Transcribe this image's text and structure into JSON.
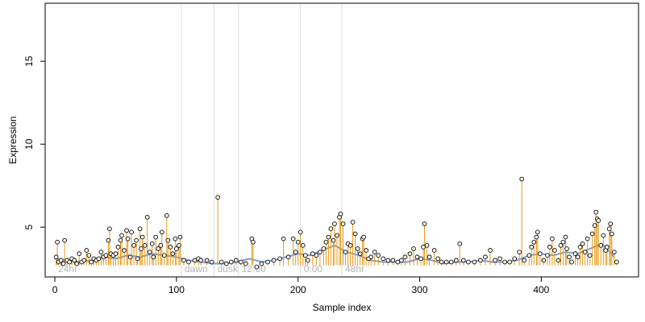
{
  "chart_data": {
    "type": "scatter",
    "xlabel": "Sample index",
    "ylabel": "Expression",
    "xlim": [
      -8,
      480
    ],
    "ylim": [
      2.0,
      18.5
    ],
    "x_ticks": [
      0,
      100,
      200,
      300,
      400
    ],
    "y_ticks": [
      5,
      10,
      15
    ],
    "grid": false,
    "legend": "none",
    "baseline": 2.7,
    "regions": [
      {
        "label": "24hr",
        "x": 0
      },
      {
        "label": "dawn",
        "x": 104
      },
      {
        "label": "dusk",
        "x": 131
      },
      {
        "label": "12:00",
        "x": 151
      },
      {
        "label": "0:00",
        "x": 202
      },
      {
        "label": "48hr",
        "x": 236
      }
    ],
    "vertical_lines": [
      104,
      131,
      151,
      202,
      236
    ],
    "colors": {
      "points_fill": "#ffffff",
      "points_stroke": "#000000",
      "spikes": "#e69a17",
      "smooth_line": "#7b9fd8",
      "divider": "#dedede",
      "region_label": "#b3b3b3"
    },
    "points": [
      [
        1,
        3.2
      ],
      [
        2,
        4.1
      ],
      [
        3,
        2.9
      ],
      [
        5,
        3.0
      ],
      [
        7,
        2.8
      ],
      [
        8,
        4.2
      ],
      [
        10,
        3.0
      ],
      [
        12,
        2.9
      ],
      [
        14,
        3.1
      ],
      [
        16,
        3.0
      ],
      [
        18,
        2.8
      ],
      [
        20,
        3.4
      ],
      [
        22,
        2.9
      ],
      [
        24,
        3.0
      ],
      [
        26,
        3.6
      ],
      [
        28,
        3.3
      ],
      [
        30,
        2.9
      ],
      [
        32,
        3.1
      ],
      [
        34,
        3.0
      ],
      [
        36,
        3.1
      ],
      [
        38,
        3.5
      ],
      [
        40,
        3.2
      ],
      [
        42,
        3.3
      ],
      [
        44,
        4.2
      ],
      [
        45,
        4.9
      ],
      [
        46,
        3.4
      ],
      [
        48,
        3.3
      ],
      [
        50,
        3.4
      ],
      [
        52,
        3.8
      ],
      [
        54,
        4.2
      ],
      [
        55,
        4.5
      ],
      [
        57,
        3.6
      ],
      [
        59,
        4.8
      ],
      [
        60,
        4.3
      ],
      [
        62,
        3.2
      ],
      [
        63,
        4.7
      ],
      [
        65,
        3.9
      ],
      [
        67,
        4.2
      ],
      [
        68,
        3.1
      ],
      [
        70,
        4.9
      ],
      [
        71,
        3.7
      ],
      [
        72,
        4.4
      ],
      [
        74,
        3.9
      ],
      [
        76,
        5.6
      ],
      [
        78,
        3.5
      ],
      [
        80,
        4.0
      ],
      [
        81,
        3.2
      ],
      [
        83,
        4.4
      ],
      [
        85,
        3.7
      ],
      [
        87,
        3.9
      ],
      [
        88,
        4.7
      ],
      [
        90,
        3.3
      ],
      [
        92,
        5.7
      ],
      [
        93,
        4.2
      ],
      [
        95,
        3.8
      ],
      [
        97,
        3.4
      ],
      [
        99,
        4.3
      ],
      [
        100,
        3.7
      ],
      [
        102,
        3.9
      ],
      [
        103,
        4.4
      ],
      [
        106,
        3.0
      ],
      [
        110,
        2.9
      ],
      [
        115,
        3.0
      ],
      [
        118,
        3.1
      ],
      [
        120,
        3.0
      ],
      [
        125,
        3.0
      ],
      [
        129,
        2.9
      ],
      [
        134,
        6.8
      ],
      [
        137,
        2.9
      ],
      [
        141,
        2.8
      ],
      [
        145,
        2.9
      ],
      [
        149,
        3.0
      ],
      [
        153,
        2.9
      ],
      [
        157,
        2.8
      ],
      [
        162,
        4.3
      ],
      [
        163,
        4.1
      ],
      [
        166,
        2.6
      ],
      [
        170,
        2.8
      ],
      [
        175,
        2.9
      ],
      [
        180,
        3.0
      ],
      [
        185,
        3.1
      ],
      [
        188,
        4.3
      ],
      [
        192,
        3.2
      ],
      [
        196,
        4.3
      ],
      [
        198,
        3.5
      ],
      [
        200,
        4.1
      ],
      [
        202,
        4.7
      ],
      [
        204,
        3.9
      ],
      [
        206,
        3.3
      ],
      [
        208,
        3.0
      ],
      [
        212,
        3.4
      ],
      [
        215,
        3.3
      ],
      [
        218,
        3.5
      ],
      [
        221,
        3.7
      ],
      [
        223,
        4.1
      ],
      [
        225,
        4.4
      ],
      [
        227,
        4.9
      ],
      [
        229,
        4.2
      ],
      [
        230,
        5.2
      ],
      [
        232,
        4.5
      ],
      [
        234,
        5.6
      ],
      [
        235,
        5.8
      ],
      [
        237,
        5.2
      ],
      [
        239,
        3.5
      ],
      [
        241,
        4.0
      ],
      [
        243,
        3.9
      ],
      [
        245,
        5.3
      ],
      [
        247,
        4.6
      ],
      [
        249,
        3.7
      ],
      [
        251,
        3.4
      ],
      [
        253,
        4.3
      ],
      [
        254,
        4.4
      ],
      [
        256,
        3.6
      ],
      [
        258,
        3.1
      ],
      [
        260,
        3.2
      ],
      [
        263,
        3.5
      ],
      [
        266,
        3.3
      ],
      [
        270,
        3.1
      ],
      [
        274,
        3.0
      ],
      [
        278,
        3.0
      ],
      [
        282,
        2.9
      ],
      [
        285,
        3.0
      ],
      [
        288,
        3.2
      ],
      [
        292,
        3.4
      ],
      [
        295,
        3.7
      ],
      [
        298,
        3.2
      ],
      [
        301,
        3.1
      ],
      [
        303,
        3.8
      ],
      [
        304,
        5.2
      ],
      [
        306,
        3.9
      ],
      [
        308,
        3.2
      ],
      [
        312,
        3.6
      ],
      [
        315,
        3.1
      ],
      [
        318,
        2.9
      ],
      [
        322,
        2.9
      ],
      [
        326,
        2.9
      ],
      [
        330,
        3.0
      ],
      [
        333,
        4.0
      ],
      [
        336,
        3.0
      ],
      [
        340,
        2.9
      ],
      [
        345,
        2.9
      ],
      [
        350,
        3.0
      ],
      [
        354,
        3.2
      ],
      [
        358,
        3.6
      ],
      [
        362,
        3.0
      ],
      [
        366,
        3.1
      ],
      [
        370,
        2.9
      ],
      [
        374,
        2.9
      ],
      [
        378,
        3.1
      ],
      [
        382,
        3.5
      ],
      [
        384,
        7.9
      ],
      [
        386,
        3.0
      ],
      [
        390,
        3.3
      ],
      [
        392,
        3.8
      ],
      [
        394,
        4.1
      ],
      [
        396,
        4.4
      ],
      [
        397,
        4.7
      ],
      [
        399,
        3.4
      ],
      [
        402,
        3.0
      ],
      [
        405,
        3.3
      ],
      [
        407,
        3.8
      ],
      [
        409,
        4.3
      ],
      [
        411,
        3.6
      ],
      [
        414,
        3.0
      ],
      [
        416,
        3.9
      ],
      [
        418,
        4.1
      ],
      [
        420,
        4.4
      ],
      [
        421,
        3.7
      ],
      [
        423,
        3.2
      ],
      [
        425,
        2.9
      ],
      [
        428,
        3.4
      ],
      [
        430,
        3.2
      ],
      [
        432,
        3.8
      ],
      [
        434,
        4.0
      ],
      [
        436,
        3.5
      ],
      [
        438,
        4.3
      ],
      [
        440,
        3.3
      ],
      [
        442,
        4.6
      ],
      [
        444,
        5.1
      ],
      [
        445,
        5.9
      ],
      [
        446,
        5.5
      ],
      [
        447,
        5.4
      ],
      [
        449,
        3.9
      ],
      [
        451,
        4.5
      ],
      [
        453,
        3.6
      ],
      [
        454,
        3.8
      ],
      [
        456,
        4.9
      ],
      [
        457,
        5.2
      ],
      [
        458,
        4.6
      ],
      [
        460,
        3.5
      ],
      [
        462,
        2.9
      ]
    ],
    "smooth_line": [
      [
        0,
        3.1
      ],
      [
        10,
        3.0
      ],
      [
        20,
        2.9
      ],
      [
        30,
        3.0
      ],
      [
        40,
        3.2
      ],
      [
        50,
        3.1
      ],
      [
        60,
        3.3
      ],
      [
        70,
        3.2
      ],
      [
        80,
        3.4
      ],
      [
        90,
        3.3
      ],
      [
        100,
        3.2
      ],
      [
        110,
        3.0
      ],
      [
        120,
        2.9
      ],
      [
        130,
        2.8
      ],
      [
        140,
        2.8
      ],
      [
        150,
        2.9
      ],
      [
        160,
        3.1
      ],
      [
        170,
        2.9
      ],
      [
        180,
        3.0
      ],
      [
        190,
        3.2
      ],
      [
        200,
        3.4
      ],
      [
        210,
        3.3
      ],
      [
        220,
        3.6
      ],
      [
        230,
        3.9
      ],
      [
        240,
        3.5
      ],
      [
        250,
        3.3
      ],
      [
        260,
        3.0
      ],
      [
        270,
        2.9
      ],
      [
        280,
        2.9
      ],
      [
        290,
        2.9
      ],
      [
        300,
        3.1
      ],
      [
        310,
        3.0
      ],
      [
        320,
        2.8
      ],
      [
        330,
        2.9
      ],
      [
        340,
        2.9
      ],
      [
        350,
        3.0
      ],
      [
        360,
        2.9
      ],
      [
        370,
        2.9
      ],
      [
        380,
        3.0
      ],
      [
        390,
        3.3
      ],
      [
        400,
        3.4
      ],
      [
        410,
        3.3
      ],
      [
        420,
        3.5
      ],
      [
        430,
        3.4
      ],
      [
        440,
        3.7
      ],
      [
        450,
        4.0
      ],
      [
        460,
        3.2
      ]
    ]
  }
}
